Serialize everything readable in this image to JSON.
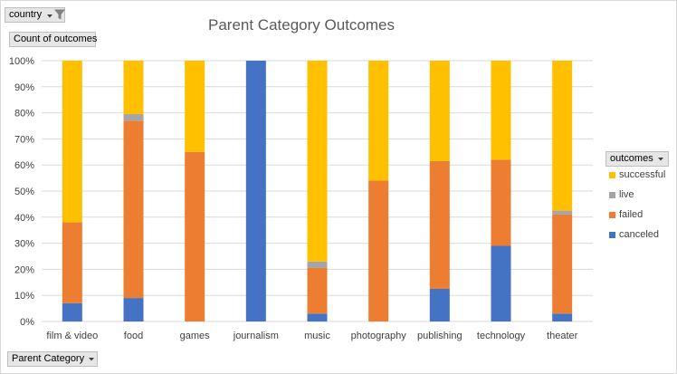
{
  "filters": {
    "country_label": "country",
    "value_field_label": "Count of outcomes",
    "axis_field_label": "Parent Category",
    "legend_field_label": "outcomes"
  },
  "icons": {
    "country_filter": "filter-dropdown-icon",
    "axis_field": "dropdown-arrow-icon",
    "legend_field": "dropdown-arrow-icon"
  },
  "chart_data": {
    "type": "bar",
    "stacked": "100%",
    "title": "Parent Category Outcomes",
    "categories": [
      "film & video",
      "food",
      "games",
      "journalism",
      "music",
      "photography",
      "publishing",
      "technology",
      "theater"
    ],
    "series": [
      {
        "name": "canceled",
        "color": "#4472c4",
        "values": [
          7,
          9,
          0,
          100,
          3,
          0,
          12.5,
          29,
          3
        ]
      },
      {
        "name": "failed",
        "color": "#ed7d31",
        "values": [
          31,
          68,
          65,
          0,
          17.5,
          54,
          49,
          33,
          38
        ]
      },
      {
        "name": "live",
        "color": "#a5a5a5",
        "values": [
          0,
          2.5,
          0,
          0,
          2.5,
          0,
          0,
          0,
          1.5
        ]
      },
      {
        "name": "successful",
        "color": "#ffc000",
        "values": [
          62,
          20.5,
          35,
          0,
          77,
          46,
          38.5,
          38,
          57.5
        ]
      }
    ],
    "legend_order": [
      "successful",
      "live",
      "failed",
      "canceled"
    ],
    "ylim": [
      0,
      100
    ],
    "yticks": [
      "0%",
      "10%",
      "20%",
      "30%",
      "40%",
      "50%",
      "60%",
      "70%",
      "80%",
      "90%",
      "100%"
    ],
    "grid": true,
    "legend_position": "right",
    "gridline_color": "#d9d9d9",
    "tick_label_color": "#404040"
  }
}
